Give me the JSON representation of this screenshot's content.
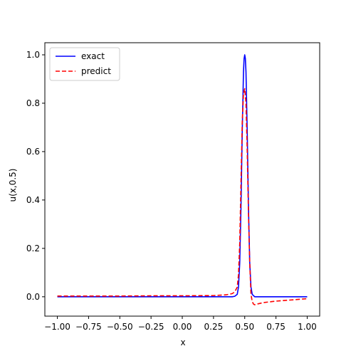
{
  "chart_data": {
    "type": "line",
    "title": "",
    "xlabel": "x",
    "ylabel": "u(x,0.5)",
    "xlim": [
      -1.1,
      1.1
    ],
    "ylim": [
      -0.08,
      1.05
    ],
    "xticks": [
      -1.0,
      -0.75,
      -0.5,
      -0.25,
      0.0,
      0.25,
      0.5,
      0.75,
      1.0
    ],
    "xtick_labels": [
      "−1.00",
      "−0.75",
      "−0.50",
      "−0.25",
      "0.00",
      "0.25",
      "0.50",
      "0.75",
      "1.00"
    ],
    "yticks": [
      0.0,
      0.2,
      0.4,
      0.6,
      0.8,
      1.0
    ],
    "ytick_labels": [
      "0.0",
      "0.2",
      "0.4",
      "0.6",
      "0.8",
      "1.0"
    ],
    "grid": false,
    "legend_position": "upper-left",
    "series": [
      {
        "name": "exact",
        "color": "#0000ff",
        "dash": "solid",
        "x": [
          -1.0,
          -0.75,
          -0.5,
          -0.25,
          0.0,
          0.25,
          0.4,
          0.42,
          0.44,
          0.45,
          0.46,
          0.47,
          0.48,
          0.49,
          0.495,
          0.5,
          0.505,
          0.51,
          0.52,
          0.53,
          0.54,
          0.55,
          0.56,
          0.58,
          0.6,
          0.75,
          1.0
        ],
        "y": [
          0.0,
          0.0,
          0.0,
          0.0,
          0.0,
          0.0,
          0.0,
          0.002,
          0.01,
          0.04,
          0.14,
          0.37,
          0.68,
          0.93,
          0.985,
          1.0,
          0.985,
          0.93,
          0.68,
          0.37,
          0.14,
          0.04,
          0.01,
          0.0,
          0.0,
          0.0,
          0.0
        ]
      },
      {
        "name": "predict",
        "color": "#ff0000",
        "dash": "dashed",
        "x": [
          -1.0,
          -0.75,
          -0.5,
          -0.25,
          0.0,
          0.25,
          0.35,
          0.4,
          0.42,
          0.44,
          0.45,
          0.46,
          0.47,
          0.48,
          0.49,
          0.5,
          0.51,
          0.52,
          0.53,
          0.54,
          0.55,
          0.56,
          0.57,
          0.58,
          0.6,
          0.65,
          0.75,
          0.9,
          1.0
        ],
        "y": [
          0.003,
          0.003,
          0.003,
          0.004,
          0.004,
          0.005,
          0.008,
          0.013,
          0.02,
          0.04,
          0.09,
          0.22,
          0.47,
          0.72,
          0.84,
          0.86,
          0.8,
          0.6,
          0.34,
          0.14,
          0.01,
          -0.02,
          -0.03,
          -0.033,
          -0.03,
          -0.024,
          -0.018,
          -0.012,
          -0.008
        ]
      }
    ]
  }
}
